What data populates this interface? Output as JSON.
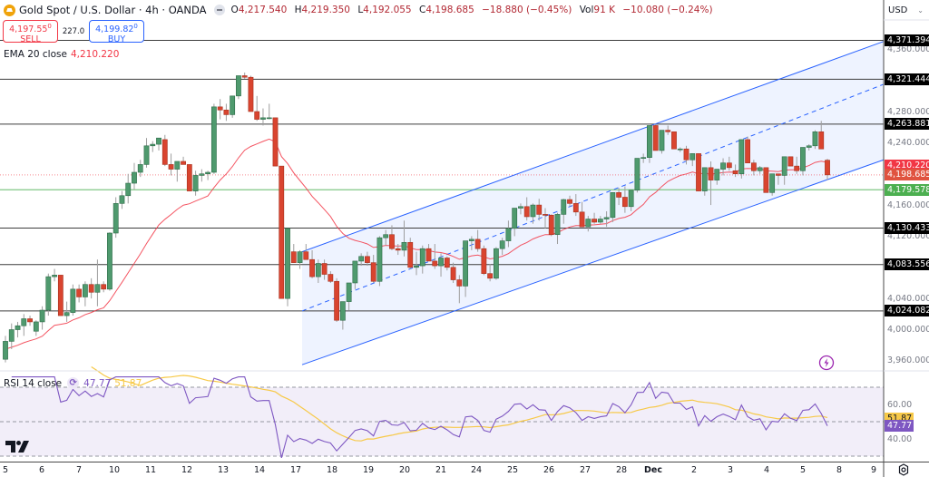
{
  "header": {
    "symbol_title": "Gold Spot / U.S. Dollar · 4h · OANDA",
    "ohlc": [
      {
        "label": "O",
        "value": "4,217.540"
      },
      {
        "label": "H",
        "value": "4,219.350"
      },
      {
        "label": "L",
        "value": "4,192.055"
      },
      {
        "label": "C",
        "value": "4,198.685"
      }
    ],
    "change": "−18.880 (−0.45%)",
    "volume_label": "Vol",
    "volume": "91 K",
    "volume_change": "−10.080 (−0.24%)"
  },
  "trade": {
    "sell_price": "4,197.55",
    "sell_sup": "0",
    "sell_label": "SELL",
    "spread": "227.0",
    "buy_price": "4,199.82",
    "buy_sup": "0",
    "buy_label": "BUY"
  },
  "indicators": {
    "ema_label": "EMA 20 close",
    "ema_value": "4,210.220",
    "rsi_label": "RSI 14 close",
    "rsi_value": "47.77",
    "rsi_ma_value": "51.87"
  },
  "price_axis": {
    "currency": "USD",
    "ticks": [
      "4,360.000",
      "4,280.000",
      "4,240.000",
      "4,160.000",
      "4,120.000",
      "4,040.000",
      "4,000.000",
      "3,960.000"
    ],
    "rsi_ticks": [
      "60.00",
      "40.00"
    ]
  },
  "levels": [
    {
      "label": "4,371.394",
      "price": 4371.394
    },
    {
      "label": "4,321.444",
      "price": 4321.444
    },
    {
      "label": "4,263.881",
      "price": 4263.881
    },
    {
      "label": "4,130.433",
      "price": 4130.433
    },
    {
      "label": "4,083.556",
      "price": 4083.556
    },
    {
      "label": "4,024.082",
      "price": 4024.082
    }
  ],
  "tags": {
    "ema": {
      "label": "4,210.220",
      "color": "#f23645"
    },
    "last": {
      "label": "4,198.685",
      "color": "#e0533f"
    },
    "support": {
      "label": "4,179.578",
      "color": "#4caf50"
    },
    "rsi_ma": {
      "label": "51.87",
      "color": "#f7c948"
    },
    "rsi": {
      "label": "47.77",
      "color": "#7e57c2"
    }
  },
  "time_axis": [
    "5",
    "6",
    "7",
    "10",
    "11",
    "12",
    "13",
    "14",
    "17",
    "18",
    "19",
    "20",
    "21",
    "24",
    "25",
    "26",
    "27",
    "28",
    "Dec",
    "2",
    "3",
    "4",
    "5",
    "8",
    "9"
  ],
  "colors": {
    "up": "#4f9a6e",
    "down": "#d9442f",
    "ema": "#f23645",
    "channel": "#2962ff",
    "rsi": "#7e57c2",
    "rsi_ma": "#f7c948"
  },
  "chart_data": {
    "type": "candlestick",
    "title": "Gold Spot / U.S. Dollar · 4h · OANDA",
    "xlabel": "",
    "ylabel": "USD",
    "ylim": [
      3940,
      4380
    ],
    "x_ticks": [
      "5",
      "6",
      "7",
      "10",
      "11",
      "12",
      "13",
      "14",
      "17",
      "18",
      "19",
      "20",
      "21",
      "24",
      "25",
      "26",
      "27",
      "28",
      "Dec",
      "2",
      "3",
      "4",
      "5",
      "8",
      "9"
    ],
    "candles_ohlc": [
      [
        3962,
        3992,
        3958,
        3985
      ],
      [
        3985,
        4008,
        3975,
        4000
      ],
      [
        4000,
        4010,
        3990,
        4005
      ],
      [
        4005,
        4020,
        3992,
        4014
      ],
      [
        4014,
        4018,
        4005,
        4010
      ],
      [
        3998,
        4012,
        3992,
        4010
      ],
      [
        4010,
        4030,
        4000,
        4025
      ],
      [
        4025,
        4072,
        4018,
        4068
      ],
      [
        4068,
        4078,
        4062,
        4070
      ],
      [
        4070,
        4070,
        4018,
        4018
      ],
      [
        4018,
        4036,
        4010,
        4022
      ],
      [
        4022,
        4058,
        4018,
        4052
      ],
      [
        4052,
        4058,
        4035,
        4042
      ],
      [
        4042,
        4062,
        4030,
        4058
      ],
      [
        4058,
        4066,
        4040,
        4048
      ],
      [
        4048,
        4090,
        4030,
        4058
      ],
      [
        4058,
        4062,
        4048,
        4052
      ],
      [
        4052,
        4125,
        4050,
        4124
      ],
      [
        4124,
        4170,
        4118,
        4162
      ],
      [
        4162,
        4178,
        4155,
        4172
      ],
      [
        4172,
        4200,
        4162,
        4188
      ],
      [
        4188,
        4214,
        4180,
        4202
      ],
      [
        4202,
        4218,
        4196,
        4212
      ],
      [
        4212,
        4246,
        4208,
        4236
      ],
      [
        4236,
        4242,
        4228,
        4238
      ],
      [
        4238,
        4246,
        4230,
        4246
      ],
      [
        4244,
        4250,
        4210,
        4212
      ],
      [
        4212,
        4226,
        4198,
        4206
      ],
      [
        4206,
        4214,
        4190,
        4216
      ],
      [
        4216,
        4222,
        4212,
        4212
      ],
      [
        4212,
        4212,
        4178,
        4178
      ],
      [
        4178,
        4204,
        4172,
        4198
      ],
      [
        4198,
        4206,
        4190,
        4200
      ],
      [
        4200,
        4204,
        4192,
        4202
      ],
      [
        4202,
        4290,
        4200,
        4286
      ],
      [
        4286,
        4296,
        4270,
        4282
      ],
      [
        4282,
        4290,
        4268,
        4276
      ],
      [
        4276,
        4296,
        4272,
        4300
      ],
      [
        4300,
        4326,
        4296,
        4326
      ],
      [
        4326,
        4330,
        4322,
        4324
      ],
      [
        4324,
        4326,
        4280,
        4280
      ],
      [
        4280,
        4300,
        4268,
        4270
      ],
      [
        4270,
        4284,
        4262,
        4272
      ],
      [
        4272,
        4290,
        4270,
        4272
      ],
      [
        4272,
        4272,
        4210,
        4210
      ],
      [
        4210,
        4210,
        4040,
        4040
      ],
      [
        4040,
        4130,
        4030,
        4130
      ],
      [
        4100,
        4110,
        4086,
        4086
      ],
      [
        4086,
        4102,
        4078,
        4100
      ],
      [
        4100,
        4110,
        4090,
        4090
      ],
      [
        4090,
        4102,
        4066,
        4068
      ],
      [
        4068,
        4090,
        4060,
        4085
      ],
      [
        4085,
        4090,
        4064,
        4071
      ],
      [
        4071,
        4075,
        4060,
        4062
      ],
      [
        4062,
        4066,
        4010,
        4012
      ],
      [
        4012,
        4030,
        4000,
        4036
      ],
      [
        4036,
        4060,
        4025,
        4060
      ],
      [
        4060,
        4088,
        4052,
        4088
      ],
      [
        4088,
        4098,
        4082,
        4094
      ],
      [
        4094,
        4100,
        4082,
        4086
      ],
      [
        4086,
        4096,
        4060,
        4062
      ],
      [
        4062,
        4120,
        4056,
        4118
      ],
      [
        4118,
        4128,
        4108,
        4122
      ],
      [
        4122,
        4134,
        4102,
        4104
      ],
      [
        4104,
        4110,
        4096,
        4102
      ],
      [
        4102,
        4140,
        4094,
        4112
      ],
      [
        4112,
        4118,
        4078,
        4080
      ],
      [
        4080,
        4100,
        4070,
        4082
      ],
      [
        4082,
        4108,
        4072,
        4104
      ],
      [
        4104,
        4110,
        4088,
        4088
      ],
      [
        4088,
        4110,
        4078,
        4082
      ],
      [
        4082,
        4098,
        4068,
        4092
      ],
      [
        4092,
        4094,
        4076,
        4080
      ],
      [
        4080,
        4086,
        4060,
        4064
      ],
      [
        4064,
        4070,
        4034,
        4056
      ],
      [
        4056,
        4110,
        4042,
        4114
      ],
      [
        4114,
        4120,
        4102,
        4116
      ],
      [
        4116,
        4128,
        4100,
        4104
      ],
      [
        4104,
        4108,
        4070,
        4072
      ],
      [
        4072,
        4084,
        4062,
        4066
      ],
      [
        4066,
        4106,
        4064,
        4104
      ],
      [
        4104,
        4118,
        4096,
        4114
      ],
      [
        4114,
        4140,
        4106,
        4130
      ],
      [
        4130,
        4156,
        4120,
        4156
      ],
      [
        4156,
        4162,
        4148,
        4158
      ],
      [
        4158,
        4170,
        4140,
        4145
      ],
      [
        4145,
        4162,
        4136,
        4160
      ],
      [
        4160,
        4168,
        4140,
        4148
      ],
      [
        4148,
        4156,
        4130,
        4147
      ],
      [
        4147,
        4148,
        4120,
        4122
      ],
      [
        4122,
        4150,
        4110,
        4148
      ],
      [
        4148,
        4168,
        4136,
        4167
      ],
      [
        4167,
        4172,
        4158,
        4162
      ],
      [
        4162,
        4174,
        4146,
        4151
      ],
      [
        4151,
        4164,
        4140,
        4132
      ],
      [
        4132,
        4146,
        4126,
        4142
      ],
      [
        4142,
        4150,
        4136,
        4138
      ],
      [
        4138,
        4146,
        4136,
        4142
      ],
      [
        4142,
        4152,
        4132,
        4144
      ],
      [
        4144,
        4176,
        4138,
        4176
      ],
      [
        4176,
        4182,
        4160,
        4170
      ],
      [
        4170,
        4184,
        4150,
        4158
      ],
      [
        4158,
        4176,
        4152,
        4179
      ],
      [
        4179,
        4220,
        4176,
        4220
      ],
      [
        4220,
        4226,
        4214,
        4221
      ],
      [
        4221,
        4262,
        4214,
        4262
      ],
      [
        4262,
        4264,
        4230,
        4230
      ],
      [
        4230,
        4254,
        4226,
        4256
      ],
      [
        4256,
        4262,
        4250,
        4254
      ],
      [
        4254,
        4254,
        4232,
        4232
      ],
      [
        4232,
        4234,
        4228,
        4232
      ],
      [
        4232,
        4236,
        4212,
        4218
      ],
      [
        4218,
        4226,
        4210,
        4226
      ],
      [
        4226,
        4226,
        4178,
        4178
      ],
      [
        4178,
        4208,
        4172,
        4208
      ],
      [
        4208,
        4216,
        4160,
        4192
      ],
      [
        4192,
        4204,
        4186,
        4206
      ],
      [
        4206,
        4220,
        4198,
        4214
      ],
      [
        4214,
        4222,
        4204,
        4208
      ],
      [
        4204,
        4212,
        4196,
        4200
      ],
      [
        4200,
        4244,
        4194,
        4244
      ],
      [
        4244,
        4248,
        4214,
        4214
      ],
      [
        4214,
        4218,
        4198,
        4204
      ],
      [
        4204,
        4210,
        4200,
        4208
      ],
      [
        4208,
        4208,
        4176,
        4176
      ],
      [
        4176,
        4200,
        4172,
        4200
      ],
      [
        4200,
        4200,
        4186,
        4198
      ],
      [
        4198,
        4222,
        4186,
        4222
      ],
      [
        4222,
        4222,
        4210,
        4210
      ],
      [
        4210,
        4222,
        4200,
        4204
      ],
      [
        4204,
        4232,
        4198,
        4234
      ],
      [
        4234,
        4238,
        4230,
        4236
      ],
      [
        4236,
        4256,
        4232,
        4254
      ],
      [
        4254,
        4268,
        4232,
        4232
      ],
      [
        4217.54,
        4219.35,
        4192.055,
        4198.685
      ]
    ],
    "ema20_close_last": 4210.22,
    "horizontal_levels": [
      4371.394,
      4321.444,
      4263.881,
      4130.433,
      4083.556,
      4024.082,
      4179.578
    ],
    "parallel_channel": {
      "start_x_label": "17",
      "end_x_label": "5",
      "upper": [
        4100,
        4370
      ],
      "median": [
        4024,
        4315
      ],
      "lower": [
        3955,
        4218
      ]
    },
    "rsi": {
      "period": 14,
      "last": 47.77,
      "ma_last": 51.87,
      "levels": [
        70,
        50,
        30
      ],
      "ylim": [
        20,
        80
      ]
    }
  }
}
